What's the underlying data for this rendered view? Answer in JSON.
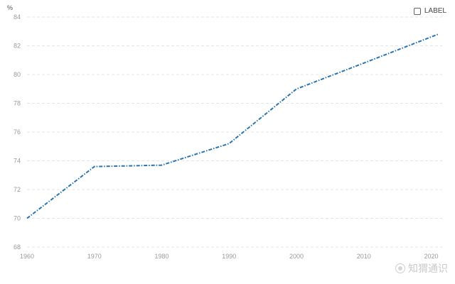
{
  "chart_data": {
    "type": "line",
    "title": "",
    "xlabel": "",
    "ylabel": "",
    "y_unit": "%",
    "xlim": [
      1960,
      2021
    ],
    "ylim": [
      68,
      84
    ],
    "x_ticks": [
      1960,
      1970,
      1980,
      1990,
      2000,
      2010,
      2020
    ],
    "y_ticks": [
      68,
      70,
      72,
      74,
      76,
      78,
      80,
      82,
      84
    ],
    "grid": {
      "horizontal": true,
      "style": "dashed"
    },
    "legend_position": "top-right",
    "series": [
      {
        "name": "LABEL",
        "color": "#2a74b0",
        "line_style": "dash-dot",
        "x": [
          1960,
          1970,
          1980,
          1990,
          2000,
          2010,
          2021
        ],
        "y": [
          70.0,
          73.6,
          73.7,
          75.2,
          79.0,
          80.8,
          82.8
        ]
      }
    ]
  },
  "legend": {
    "label": "LABEL"
  },
  "watermark": {
    "text": "知猬通识"
  }
}
